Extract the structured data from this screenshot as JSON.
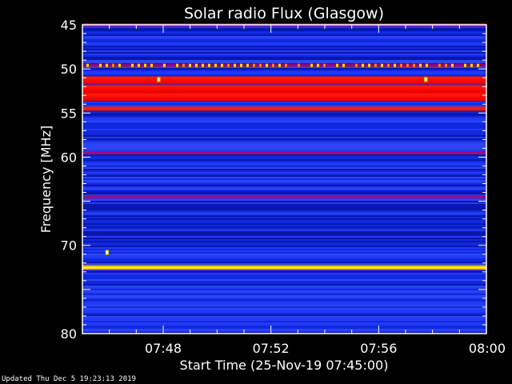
{
  "chart_data": {
    "type": "heatmap",
    "title": "Solar radio Flux (Glasgow)",
    "xlabel": "Start Time (25-Nov-19 07:45:00)",
    "ylabel": "Frequency [MHz]",
    "x_range": [
      "07:45",
      "08:00"
    ],
    "ylim": [
      45,
      80
    ],
    "y_inverted": true,
    "xticks": [
      "07:48",
      "07:52",
      "07:56",
      "08:00"
    ],
    "yticks": [
      45,
      50,
      55,
      60,
      70,
      80
    ],
    "colormap": [
      "#00007a",
      "#0a20d8",
      "#2c3fff",
      "#c0005a",
      "#ff1e00",
      "#ffe000",
      "#ffffff"
    ],
    "background_color": "#1a33e8",
    "emission_bands": [
      {
        "freq_mhz": 45.0,
        "level": "moderate"
      },
      {
        "freq_mhz": 49.6,
        "level": "intermittent-bright"
      },
      {
        "freq_mhz": 51.3,
        "level": "very-strong"
      },
      {
        "freq_mhz": 52.3,
        "level": "very-strong"
      },
      {
        "freq_mhz": 53.2,
        "level": "very-strong"
      },
      {
        "freq_mhz": 54.5,
        "level": "strong"
      },
      {
        "freq_mhz": 59.5,
        "level": "moderate"
      },
      {
        "freq_mhz": 64.5,
        "level": "moderate"
      },
      {
        "freq_mhz": 72.5,
        "level": "very-strong-yellow"
      }
    ],
    "bright_spots": [
      {
        "time": "07:47:50",
        "freq_mhz": 51.2
      },
      {
        "time": "07:57:45",
        "freq_mhz": 51.2
      },
      {
        "time": "07:45:55",
        "freq_mhz": 70.8
      }
    ]
  },
  "footer": "Updated Thu Dec  5 19:23:13 2019"
}
